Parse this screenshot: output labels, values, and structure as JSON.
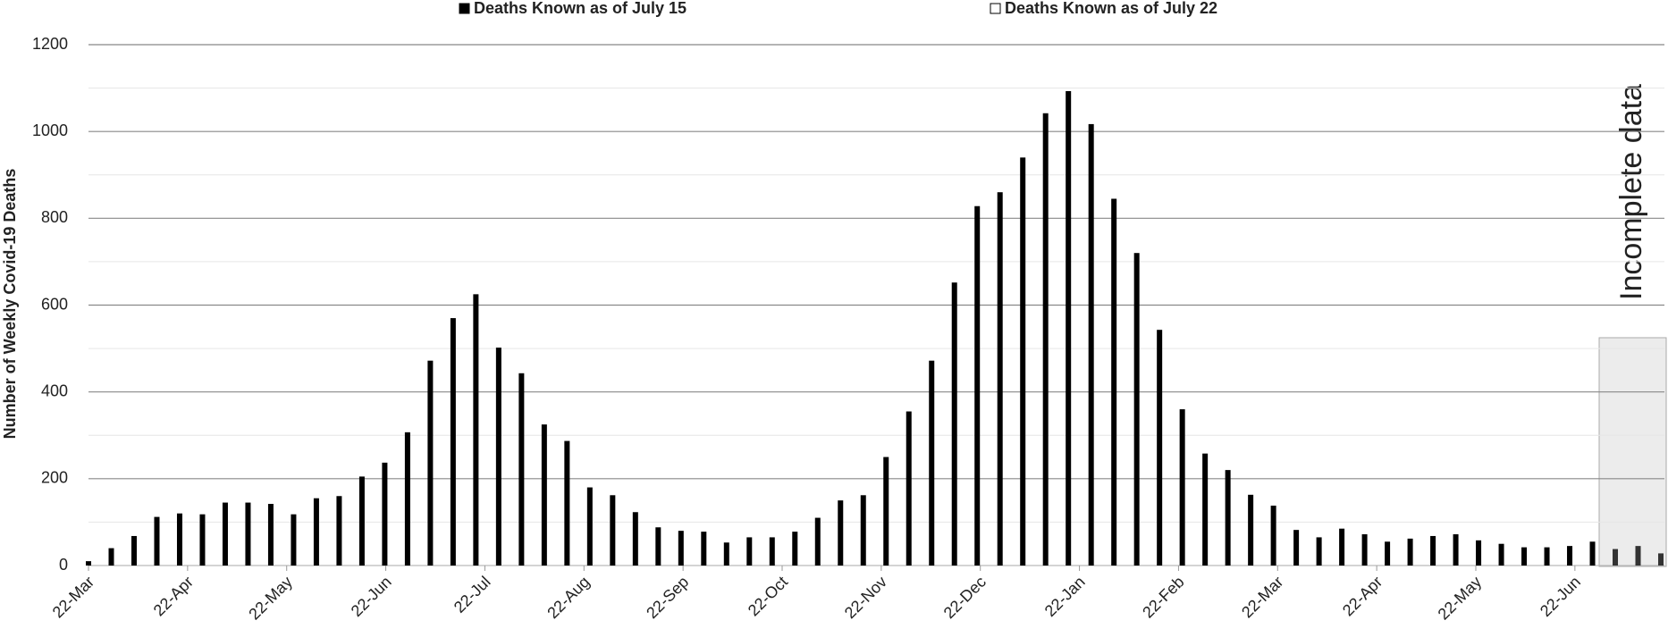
{
  "chart_data": {
    "type": "bar",
    "y_label": "Number of Weekly Covid-19 Deaths",
    "xtick_labels": [
      "22-Mar",
      "22-Apr",
      "22-May",
      "22-Jun",
      "22-Jul",
      "22-Aug",
      "22-Sep",
      "22-Oct",
      "22-Nov",
      "22-Dec",
      "22-Jan",
      "22-Feb",
      "22-Mar",
      "22-Apr",
      "22-May",
      "22-Jun"
    ],
    "annotation": "Incomplete data",
    "ylim": [
      0,
      1200
    ],
    "yticks": [
      0,
      200,
      400,
      600,
      800,
      1000,
      1200
    ],
    "grid": true,
    "legend": "top",
    "series": [
      {
        "name": "Deaths Known as of July 15",
        "color": "#000000",
        "values": [
          10,
          40,
          68,
          112,
          120,
          118,
          145,
          145,
          142,
          118,
          155,
          160,
          205,
          237,
          307,
          472,
          570,
          625,
          502,
          443,
          325,
          287,
          180,
          162,
          123,
          88,
          80,
          78,
          53,
          65,
          65,
          78,
          110,
          150,
          162,
          250,
          355,
          472,
          652,
          828,
          860,
          940,
          1042,
          1093,
          1017,
          845,
          720,
          543,
          360,
          258,
          220,
          163,
          138,
          82,
          65,
          85,
          72,
          55,
          62,
          68,
          72,
          58,
          50,
          42,
          42,
          45,
          55,
          38,
          45,
          28
        ]
      },
      {
        "name": "Deaths Known as of July 22",
        "color": "#ffffff",
        "values": [
          null,
          null,
          null,
          null,
          null,
          null,
          null,
          null,
          null,
          null,
          null,
          null,
          null,
          null,
          null,
          null,
          null,
          null,
          null,
          null,
          null,
          null,
          null,
          null,
          null,
          null,
          null,
          null,
          null,
          null,
          null,
          null,
          null,
          null,
          null,
          null,
          null,
          null,
          null,
          null,
          null,
          null,
          null,
          null,
          null,
          null,
          null,
          null,
          null,
          null,
          null,
          null,
          null,
          null,
          null,
          null,
          null,
          null,
          null,
          null,
          null,
          null,
          null,
          null,
          null,
          null,
          null,
          null,
          null,
          null
        ]
      }
    ]
  }
}
